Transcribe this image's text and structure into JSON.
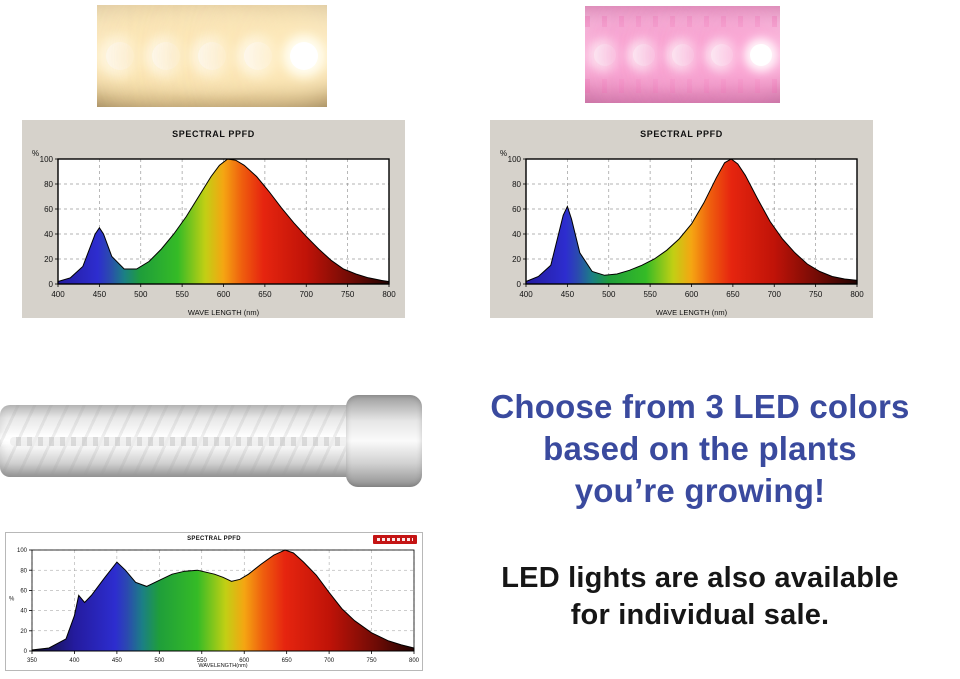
{
  "headline": {
    "lines": [
      "Choose from 3 LED colors",
      "based on the plants",
      "you’re growing!"
    ],
    "color": "#3a4a9e"
  },
  "note": {
    "lines": [
      "LED lights are also available",
      "for individual sale."
    ],
    "color": "#161616"
  },
  "photos": {
    "warm_strip": {
      "name": "warm-white LED strip glowing",
      "led_count": 5
    },
    "pink_strip": {
      "name": "pink bloom LED strip glowing",
      "led_count": 5
    },
    "tube": {
      "name": "white LED tube light"
    }
  },
  "chart_data": [
    {
      "type": "area",
      "style": "panel",
      "title": "SPECTRAL PPFD",
      "xlabel": "WAVE LENGTH (nm)",
      "ylabel": "%",
      "xlim": [
        400,
        800
      ],
      "ylim": [
        0,
        100
      ],
      "xticks": [
        400,
        450,
        500,
        550,
        600,
        650,
        700,
        750,
        800
      ],
      "yticks": [
        0,
        20,
        40,
        60,
        80,
        100
      ],
      "grid": true,
      "legend": "none",
      "points": [
        [
          400,
          2
        ],
        [
          415,
          5
        ],
        [
          430,
          14
        ],
        [
          445,
          40
        ],
        [
          450,
          45
        ],
        [
          455,
          40
        ],
        [
          465,
          22
        ],
        [
          480,
          12
        ],
        [
          495,
          12
        ],
        [
          510,
          18
        ],
        [
          525,
          28
        ],
        [
          540,
          40
        ],
        [
          555,
          54
        ],
        [
          570,
          70
        ],
        [
          585,
          86
        ],
        [
          595,
          95
        ],
        [
          605,
          100
        ],
        [
          615,
          99
        ],
        [
          625,
          95
        ],
        [
          640,
          86
        ],
        [
          655,
          74
        ],
        [
          670,
          61
        ],
        [
          685,
          49
        ],
        [
          700,
          38
        ],
        [
          715,
          28
        ],
        [
          730,
          19
        ],
        [
          745,
          12
        ],
        [
          760,
          8
        ],
        [
          775,
          5
        ],
        [
          790,
          3
        ],
        [
          800,
          2
        ]
      ]
    },
    {
      "type": "area",
      "style": "panel",
      "title": "SPECTRAL PPFD",
      "xlabel": "WAVE LENGTH (nm)",
      "ylabel": "%",
      "xlim": [
        400,
        800
      ],
      "ylim": [
        0,
        100
      ],
      "xticks": [
        400,
        450,
        500,
        550,
        600,
        650,
        700,
        750,
        800
      ],
      "yticks": [
        0,
        20,
        40,
        60,
        80,
        100
      ],
      "grid": true,
      "legend": "none",
      "points": [
        [
          400,
          2
        ],
        [
          415,
          6
        ],
        [
          430,
          15
        ],
        [
          445,
          55
        ],
        [
          450,
          62
        ],
        [
          455,
          52
        ],
        [
          465,
          25
        ],
        [
          480,
          10
        ],
        [
          495,
          7
        ],
        [
          510,
          8
        ],
        [
          525,
          11
        ],
        [
          540,
          15
        ],
        [
          555,
          20
        ],
        [
          570,
          27
        ],
        [
          585,
          36
        ],
        [
          600,
          48
        ],
        [
          615,
          65
        ],
        [
          630,
          85
        ],
        [
          640,
          97
        ],
        [
          648,
          100
        ],
        [
          656,
          96
        ],
        [
          665,
          87
        ],
        [
          680,
          68
        ],
        [
          695,
          50
        ],
        [
          710,
          36
        ],
        [
          725,
          25
        ],
        [
          740,
          16
        ],
        [
          755,
          10
        ],
        [
          770,
          6
        ],
        [
          785,
          4
        ],
        [
          800,
          3
        ]
      ]
    },
    {
      "type": "area",
      "style": "compact",
      "title": "SPECTRAL PPFD",
      "xlabel": "WAVELENGTH(nm)",
      "ylabel": "%",
      "xlim": [
        350,
        800
      ],
      "ylim": [
        0,
        100
      ],
      "xticks": [
        350,
        400,
        450,
        500,
        550,
        600,
        650,
        700,
        750,
        800
      ],
      "yticks": [
        0,
        20,
        40,
        60,
        80,
        100
      ],
      "grid": true,
      "legend": "none",
      "points": [
        [
          350,
          1
        ],
        [
          370,
          3
        ],
        [
          390,
          12
        ],
        [
          400,
          35
        ],
        [
          405,
          55
        ],
        [
          412,
          48
        ],
        [
          420,
          55
        ],
        [
          435,
          72
        ],
        [
          450,
          88
        ],
        [
          460,
          80
        ],
        [
          472,
          68
        ],
        [
          485,
          64
        ],
        [
          500,
          70
        ],
        [
          515,
          76
        ],
        [
          530,
          79
        ],
        [
          545,
          80
        ],
        [
          555,
          78
        ],
        [
          565,
          76
        ],
        [
          575,
          73
        ],
        [
          585,
          69
        ],
        [
          595,
          71
        ],
        [
          605,
          76
        ],
        [
          620,
          86
        ],
        [
          635,
          95
        ],
        [
          648,
          100
        ],
        [
          658,
          97
        ],
        [
          670,
          88
        ],
        [
          685,
          75
        ],
        [
          700,
          58
        ],
        [
          715,
          42
        ],
        [
          730,
          30
        ],
        [
          750,
          18
        ],
        [
          770,
          10
        ],
        [
          785,
          6
        ],
        [
          800,
          3
        ]
      ]
    }
  ]
}
